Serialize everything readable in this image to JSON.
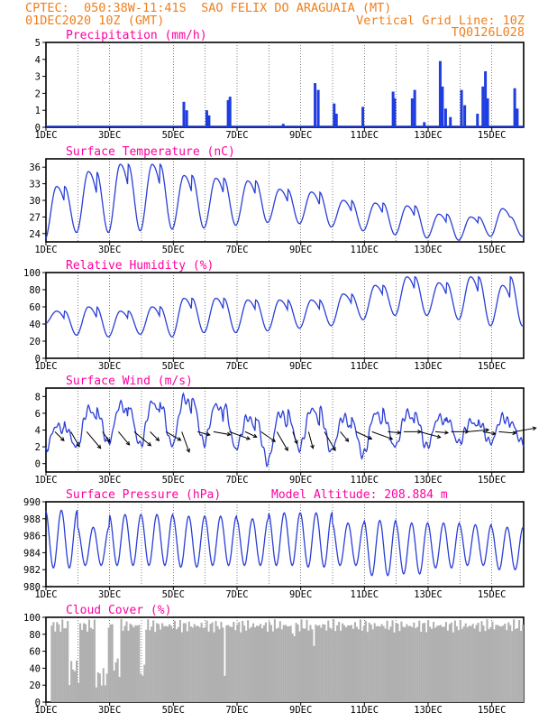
{
  "header": {
    "line1": "CPTEC:  050:38W-11:41S  SAO FELIX DO ARAGUAIA (MT)",
    "line2": "01DEC2020 10Z (GMT)",
    "grid_note": "Vertical Grid Line: 10Z",
    "run_id": "TQ0126L028"
  },
  "colors": {
    "line": "#2a3ed6",
    "bar": "#1f3de0",
    "cloud": "#b0b0b0",
    "title": "#ff00a0",
    "header": "#f07f1c"
  },
  "x_ticks": [
    "1DEC",
    "3DEC",
    "5DEC",
    "7DEC",
    "9DEC",
    "11DEC",
    "13DEC",
    "15DEC"
  ],
  "chart_data": [
    {
      "type": "bar",
      "title": "Precipitation (mm/h)",
      "ylim": [
        0,
        5
      ],
      "yticks": [
        0,
        1,
        2,
        3,
        4,
        5
      ],
      "x_range_days": [
        1,
        16
      ],
      "bars": [
        [
          5.33,
          1.5
        ],
        [
          5.42,
          1.0
        ],
        [
          6.05,
          1.0
        ],
        [
          6.12,
          0.7
        ],
        [
          6.72,
          1.6
        ],
        [
          6.78,
          1.8
        ],
        [
          8.45,
          0.2
        ],
        [
          9.45,
          2.6
        ],
        [
          9.55,
          2.2
        ],
        [
          10.05,
          1.4
        ],
        [
          10.12,
          0.8
        ],
        [
          10.95,
          1.2
        ],
        [
          11.9,
          2.1
        ],
        [
          11.95,
          1.7
        ],
        [
          12.5,
          1.7
        ],
        [
          12.58,
          2.2
        ],
        [
          12.88,
          0.3
        ],
        [
          13.38,
          3.9
        ],
        [
          13.45,
          2.4
        ],
        [
          13.55,
          1.1
        ],
        [
          13.7,
          0.6
        ],
        [
          14.05,
          2.2
        ],
        [
          14.15,
          1.3
        ],
        [
          14.55,
          0.8
        ],
        [
          14.72,
          2.4
        ],
        [
          14.8,
          3.3
        ],
        [
          14.87,
          1.7
        ],
        [
          15.72,
          2.3
        ],
        [
          15.8,
          1.1
        ]
      ]
    },
    {
      "type": "line",
      "title": "Surface Temperature (nC)",
      "ylim": [
        22.5,
        37.5
      ],
      "yticks": [
        24,
        27,
        30,
        33,
        36
      ],
      "x_range_days": [
        1,
        16
      ],
      "daily_max": [
        32.5,
        35.2,
        36.5,
        36.5,
        34.5,
        34.0,
        33.5,
        32.0,
        31.5,
        30.0,
        29.5,
        29.0,
        27.5,
        27.0,
        28.5
      ],
      "daily_min": [
        22.8,
        24.2,
        24.2,
        24.5,
        24.8,
        25.0,
        25.5,
        26.0,
        25.8,
        25.2,
        24.5,
        23.8,
        23.2,
        22.8,
        23.5
      ],
      "end_value": 32.5
    },
    {
      "type": "line",
      "title": "Relative Humidity (%)",
      "ylim": [
        0,
        100
      ],
      "yticks": [
        0,
        20,
        40,
        60,
        80,
        100
      ],
      "x_range_days": [
        1,
        16
      ],
      "daily_max": [
        55,
        60,
        55,
        60,
        70,
        70,
        68,
        68,
        68,
        75,
        85,
        95,
        88,
        95,
        85
      ],
      "daily_min": [
        40,
        27,
        25,
        28,
        25,
        30,
        30,
        32,
        35,
        38,
        45,
        50,
        50,
        45,
        38
      ],
      "end_value": 43
    },
    {
      "type": "line",
      "title": "Surface Wind (m/s)",
      "ylim": [
        -1,
        9
      ],
      "yticks": [
        0,
        2,
        4,
        6,
        8
      ],
      "x_range_days": [
        1,
        16
      ],
      "speed_max": [
        4.5,
        6.5,
        7.0,
        7.3,
        7.8,
        7.0,
        5.5,
        6.0,
        6.5,
        5.5,
        6.0,
        6.0,
        5.5,
        5.0,
        5.5
      ],
      "speed_min": [
        1.5,
        2.0,
        2.5,
        2.2,
        2.2,
        2.5,
        1.8,
        0.2,
        1.8,
        1.5,
        1.0,
        2.0,
        2.0,
        2.5,
        2.5
      ],
      "end_value": 4.0,
      "vectors_deg": [
        225,
        210,
        220,
        215,
        220,
        230,
        225,
        240,
        200,
        255,
        260,
        250,
        245,
        235,
        210,
        200,
        195,
        210,
        220,
        245,
        250,
        265,
        270,
        255,
        265,
        270,
        275,
        260,
        265,
        280
      ]
    },
    {
      "type": "line",
      "title": "Surface Pressure (hPa)",
      "annotation": "Model Altitude: 208.884 m",
      "ylim": [
        980,
        990
      ],
      "yticks": [
        980,
        982,
        984,
        986,
        988,
        990
      ],
      "x_range_days": [
        1,
        16
      ],
      "daily_max": [
        989.0,
        987.0,
        988.5,
        988.5,
        988.3,
        988.3,
        988.0,
        988.7,
        988.7,
        987.5,
        987.8,
        987.5,
        987.5,
        987.3,
        987.0
      ],
      "daily_min": [
        982.2,
        982.5,
        982.5,
        982.5,
        982.3,
        982.5,
        982.5,
        982.5,
        982.3,
        982.5,
        981.3,
        981.5,
        982.2,
        982.5,
        982.0
      ],
      "end_value": 984.3
    },
    {
      "type": "area",
      "title": "Cloud Cover (%)",
      "ylim": [
        0,
        100
      ],
      "yticks": [
        0,
        20,
        40,
        60,
        80,
        100
      ],
      "x_range_days": [
        1,
        16
      ],
      "typical_level": 90,
      "dips": [
        [
          1.7,
          2.0,
          20
        ],
        [
          2.5,
          2.9,
          10
        ],
        [
          3.1,
          3.3,
          25
        ],
        [
          3.9,
          4.1,
          15
        ],
        [
          6.55,
          6.6,
          5
        ],
        [
          8.7,
          8.8,
          55
        ],
        [
          9.3,
          9.4,
          60
        ]
      ]
    }
  ]
}
